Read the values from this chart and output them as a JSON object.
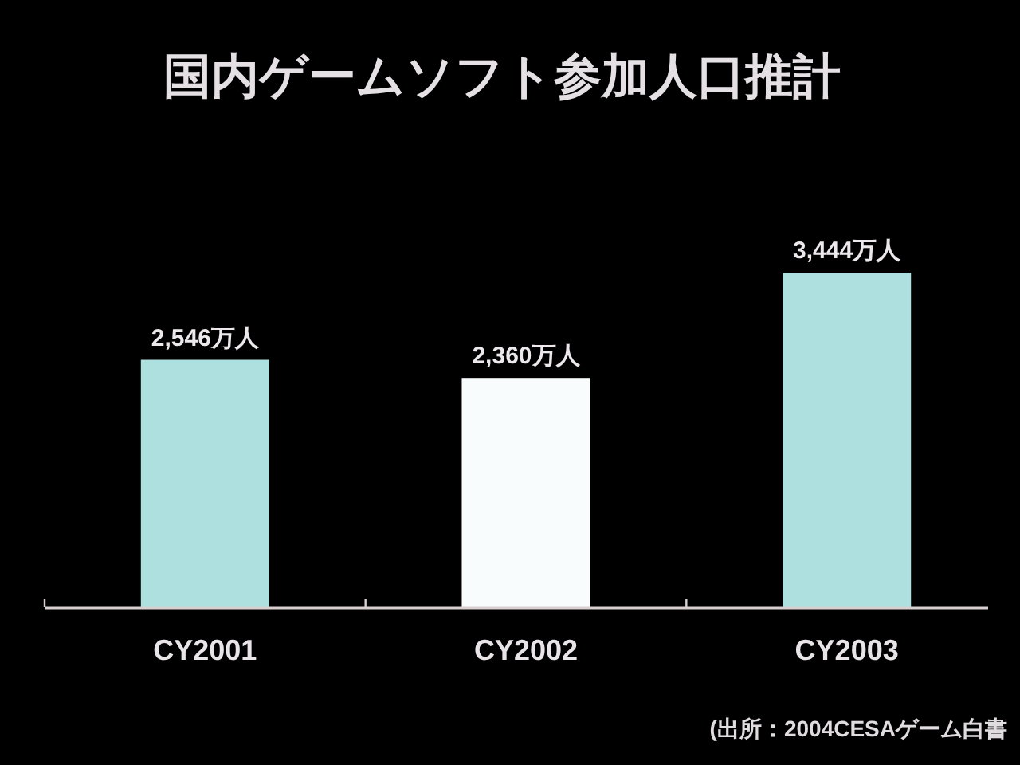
{
  "chart_data": {
    "type": "bar",
    "title": "国内ゲームソフト参加人口推計",
    "categories": [
      "CY2001",
      "CY2002",
      "CY2003"
    ],
    "values": [
      2546,
      2360,
      3444
    ],
    "colors": [
      "#aee0e0",
      "#f8fcfc",
      "#aee0e0"
    ],
    "value_labels": [
      "2,546万人",
      "2,360万人",
      "3,444万人"
    ],
    "annotations": [
      "(出所：2004CESAゲーム白書"
    ]
  }
}
